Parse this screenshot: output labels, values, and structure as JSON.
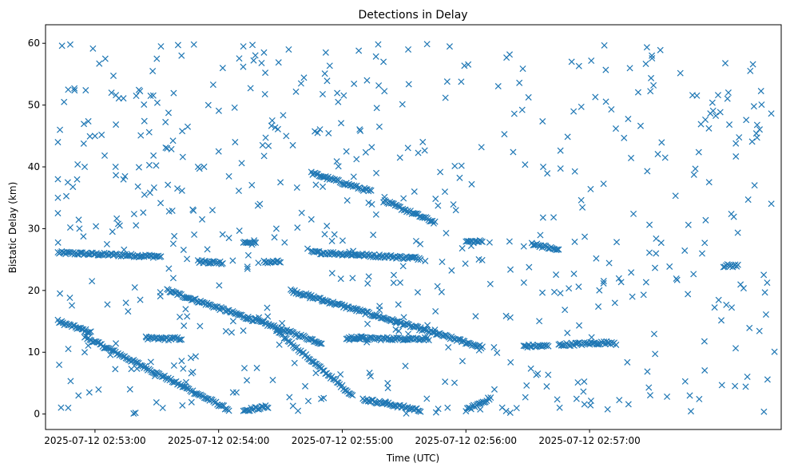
{
  "chart_data": {
    "type": "scatter",
    "title": "Detections in Delay",
    "xlabel": "Time (UTC)",
    "ylabel": "Bistatic Delay (km)",
    "x_ticks": [
      "2025-07-12 02:53:00",
      "2025-07-12 02:54:00",
      "2025-07-12 02:55:00",
      "2025-07-12 02:56:00",
      "2025-07-12 02:57:00"
    ],
    "y_ticks": [
      "0",
      "10",
      "20",
      "30",
      "40",
      "50",
      "60"
    ],
    "xlim": [
      "2025-07-12 02:52:36",
      "2025-07-12 02:58:33"
    ],
    "ylim": [
      -2.5,
      63
    ],
    "grid": false,
    "marker": "x",
    "color": "#1f77b4",
    "tracks": [
      {
        "kind": "track",
        "x_start": "2025-07-12 02:52:42",
        "x_end": "2025-07-12 02:53:32",
        "y": [
          26.1,
          25.5
        ]
      },
      {
        "kind": "track",
        "x_start": "2025-07-12 02:52:42",
        "x_end": "2025-07-12 02:52:58",
        "y": [
          15.0,
          13.2
        ]
      },
      {
        "kind": "track",
        "x_start": "2025-07-12 02:52:55",
        "x_end": "2025-07-12 02:54:05",
        "y": [
          12.5,
          0.7
        ]
      },
      {
        "kind": "track",
        "x_start": "2025-07-12 02:53:25",
        "x_end": "2025-07-12 02:53:42",
        "y": [
          12.2,
          12.2
        ]
      },
      {
        "kind": "track",
        "x_start": "2025-07-12 02:53:35",
        "x_end": "2025-07-12 02:54:50",
        "y": [
          20.0,
          11.5
        ]
      },
      {
        "kind": "track",
        "x_start": "2025-07-12 02:53:50",
        "x_end": "2025-07-12 02:54:02",
        "y": [
          24.7,
          24.5
        ]
      },
      {
        "kind": "track",
        "x_start": "2025-07-12 02:54:12",
        "x_end": "2025-07-12 02:54:24",
        "y": [
          0.6,
          1.2
        ]
      },
      {
        "kind": "track",
        "x_start": "2025-07-12 02:54:12",
        "x_end": "2025-07-12 02:54:18",
        "y": [
          27.8,
          27.6
        ]
      },
      {
        "kind": "track",
        "x_start": "2025-07-12 02:54:22",
        "x_end": "2025-07-12 02:54:30",
        "y": [
          24.6,
          24.6
        ]
      },
      {
        "kind": "track",
        "x_start": "2025-07-12 02:54:28",
        "x_end": "2025-07-12 02:55:05",
        "y": [
          13.5,
          3.0
        ]
      },
      {
        "kind": "track",
        "x_start": "2025-07-12 02:54:35",
        "x_end": "2025-07-12 02:56:08",
        "y": [
          20.0,
          10.8
        ]
      },
      {
        "kind": "track",
        "x_start": "2025-07-12 02:54:45",
        "x_end": "2025-07-12 02:55:14",
        "y": [
          39.0,
          36.0
        ]
      },
      {
        "kind": "track",
        "x_start": "2025-07-12 02:54:45",
        "x_end": "2025-07-12 02:55:38",
        "y": [
          26.2,
          25.2
        ]
      },
      {
        "kind": "track",
        "x_start": "2025-07-12 02:55:02",
        "x_end": "2025-07-12 02:55:10",
        "y": [
          12.4,
          12.4
        ]
      },
      {
        "kind": "track",
        "x_start": "2025-07-12 02:55:10",
        "x_end": "2025-07-12 02:55:38",
        "y": [
          2.4,
          0.6
        ]
      },
      {
        "kind": "track",
        "x_start": "2025-07-12 02:55:08",
        "x_end": "2025-07-12 02:55:42",
        "y": [
          12.2,
          12.2
        ]
      },
      {
        "kind": "track",
        "x_start": "2025-07-12 02:55:20",
        "x_end": "2025-07-12 02:55:45",
        "y": [
          34.5,
          31.0
        ]
      },
      {
        "kind": "track",
        "x_start": "2025-07-12 02:56:00",
        "x_end": "2025-07-12 02:56:12",
        "y": [
          0.6,
          2.6
        ]
      },
      {
        "kind": "track",
        "x_start": "2025-07-12 02:56:00",
        "x_end": "2025-07-12 02:56:08",
        "y": [
          27.9,
          27.9
        ]
      },
      {
        "kind": "track",
        "x_start": "2025-07-12 02:56:32",
        "x_end": "2025-07-12 02:56:45",
        "y": [
          27.6,
          26.5
        ]
      },
      {
        "kind": "track",
        "x_start": "2025-07-12 02:56:28",
        "x_end": "2025-07-12 02:56:40",
        "y": [
          11.0,
          11.0
        ]
      },
      {
        "kind": "track",
        "x_start": "2025-07-12 02:56:45",
        "x_end": "2025-07-12 02:57:12",
        "y": [
          11.2,
          11.6
        ]
      },
      {
        "kind": "track",
        "x_start": "2025-07-12 02:58:05",
        "x_end": "2025-07-12 02:58:12",
        "y": [
          24.0,
          24.0
        ]
      }
    ],
    "scatter_points": [
      {
        "x": "2025-07-12 02:52:42",
        "y": 44
      },
      {
        "x": "2025-07-12 02:52:43",
        "y": 46
      },
      {
        "x": "2025-07-12 02:52:44",
        "y": 59.6
      },
      {
        "x": "2025-07-12 02:52:48",
        "y": 59.8
      },
      {
        "x": "2025-07-12 02:52:45",
        "y": 50.5
      },
      {
        "x": "2025-07-12 02:52:47",
        "y": 52.5
      },
      {
        "x": "2025-07-12 02:52:50",
        "y": 52.7
      },
      {
        "x": "2025-07-12 02:52:42",
        "y": 38
      },
      {
        "x": "2025-07-12 02:52:42",
        "y": 35
      },
      {
        "x": "2025-07-12 02:52:42",
        "y": 32.5
      },
      {
        "x": "2025-07-12 02:52:43",
        "y": 19.5
      },
      {
        "x": "2025-07-12 02:52:47",
        "y": 1
      },
      {
        "x": "2025-07-12 02:52:52",
        "y": 3
      },
      {
        "x": "2025-07-12 02:52:55",
        "y": 10
      },
      {
        "x": "2025-07-12 02:52:55",
        "y": 40
      },
      {
        "x": "2025-07-12 02:53:00",
        "y": 45
      },
      {
        "x": "2025-07-12 02:53:05",
        "y": 57.5
      },
      {
        "x": "2025-07-12 02:53:08",
        "y": 52
      },
      {
        "x": "2025-07-12 02:53:10",
        "y": 40
      },
      {
        "x": "2025-07-12 02:53:12",
        "y": 30.5
      },
      {
        "x": "2025-07-12 02:53:15",
        "y": 18
      },
      {
        "x": "2025-07-12 02:53:17",
        "y": 4
      },
      {
        "x": "2025-07-12 02:53:20",
        "y": 51.5
      },
      {
        "x": "2025-07-12 02:53:24",
        "y": 35.5
      },
      {
        "x": "2025-07-12 02:53:27",
        "y": 51.5
      },
      {
        "x": "2025-07-12 02:53:28",
        "y": 55.5
      },
      {
        "x": "2025-07-12 02:53:30",
        "y": 57.5
      },
      {
        "x": "2025-07-12 02:53:32",
        "y": 59.5
      },
      {
        "x": "2025-07-12 02:53:35",
        "y": 43
      },
      {
        "x": "2025-07-12 02:53:38",
        "y": 22
      },
      {
        "x": "2025-07-12 02:53:40",
        "y": 36.5
      },
      {
        "x": "2025-07-12 02:53:42",
        "y": 58
      },
      {
        "x": "2025-07-12 02:53:45",
        "y": 46.5
      },
      {
        "x": "2025-07-12 02:53:48",
        "y": 59.8
      },
      {
        "x": "2025-07-12 02:53:50",
        "y": 40
      },
      {
        "x": "2025-07-12 02:53:52",
        "y": 31.5
      },
      {
        "x": "2025-07-12 02:53:55",
        "y": 50
      },
      {
        "x": "2025-07-12 02:53:57",
        "y": 33
      },
      {
        "x": "2025-07-12 02:54:00",
        "y": 42.5
      },
      {
        "x": "2025-07-12 02:54:02",
        "y": 56
      },
      {
        "x": "2025-07-12 02:54:05",
        "y": 28.5
      },
      {
        "x": "2025-07-12 02:54:07",
        "y": 3.5
      },
      {
        "x": "2025-07-12 02:54:08",
        "y": 44
      },
      {
        "x": "2025-07-12 02:54:12",
        "y": 59.5
      },
      {
        "x": "2025-07-12 02:54:14",
        "y": 23.5
      },
      {
        "x": "2025-07-12 02:54:18",
        "y": 15.5
      },
      {
        "x": "2025-07-12 02:54:20",
        "y": 34
      },
      {
        "x": "2025-07-12 02:54:22",
        "y": 58.5
      },
      {
        "x": "2025-07-12 02:54:26",
        "y": 47.5
      },
      {
        "x": "2025-07-12 02:54:28",
        "y": 30
      },
      {
        "x": "2025-07-12 02:54:30",
        "y": 37.5
      },
      {
        "x": "2025-07-12 02:54:34",
        "y": 59
      },
      {
        "x": "2025-07-12 02:54:36",
        "y": 43.5
      },
      {
        "x": "2025-07-12 02:54:40",
        "y": 53.5
      },
      {
        "x": "2025-07-12 02:54:42",
        "y": 4.5
      },
      {
        "x": "2025-07-12 02:54:45",
        "y": 31.5
      },
      {
        "x": "2025-07-12 02:54:48",
        "y": 45.5
      },
      {
        "x": "2025-07-12 02:54:52",
        "y": 58.5
      },
      {
        "x": "2025-07-12 02:54:55",
        "y": 28
      },
      {
        "x": "2025-07-12 02:54:58",
        "y": 50.5
      },
      {
        "x": "2025-07-12 02:55:02",
        "y": 42.5
      },
      {
        "x": "2025-07-12 02:55:05",
        "y": 22
      },
      {
        "x": "2025-07-12 02:55:08",
        "y": 58.8
      },
      {
        "x": "2025-07-12 02:55:12",
        "y": 54
      },
      {
        "x": "2025-07-12 02:55:15",
        "y": 29
      },
      {
        "x": "2025-07-12 02:55:18",
        "y": 46.5
      },
      {
        "x": "2025-07-12 02:55:20",
        "y": 57
      },
      {
        "x": "2025-07-12 02:55:22",
        "y": 5
      },
      {
        "x": "2025-07-12 02:55:25",
        "y": 22.5
      },
      {
        "x": "2025-07-12 02:55:28",
        "y": 41.5
      },
      {
        "x": "2025-07-12 02:55:32",
        "y": 59
      },
      {
        "x": "2025-07-12 02:55:35",
        "y": 36
      }
    ]
  }
}
